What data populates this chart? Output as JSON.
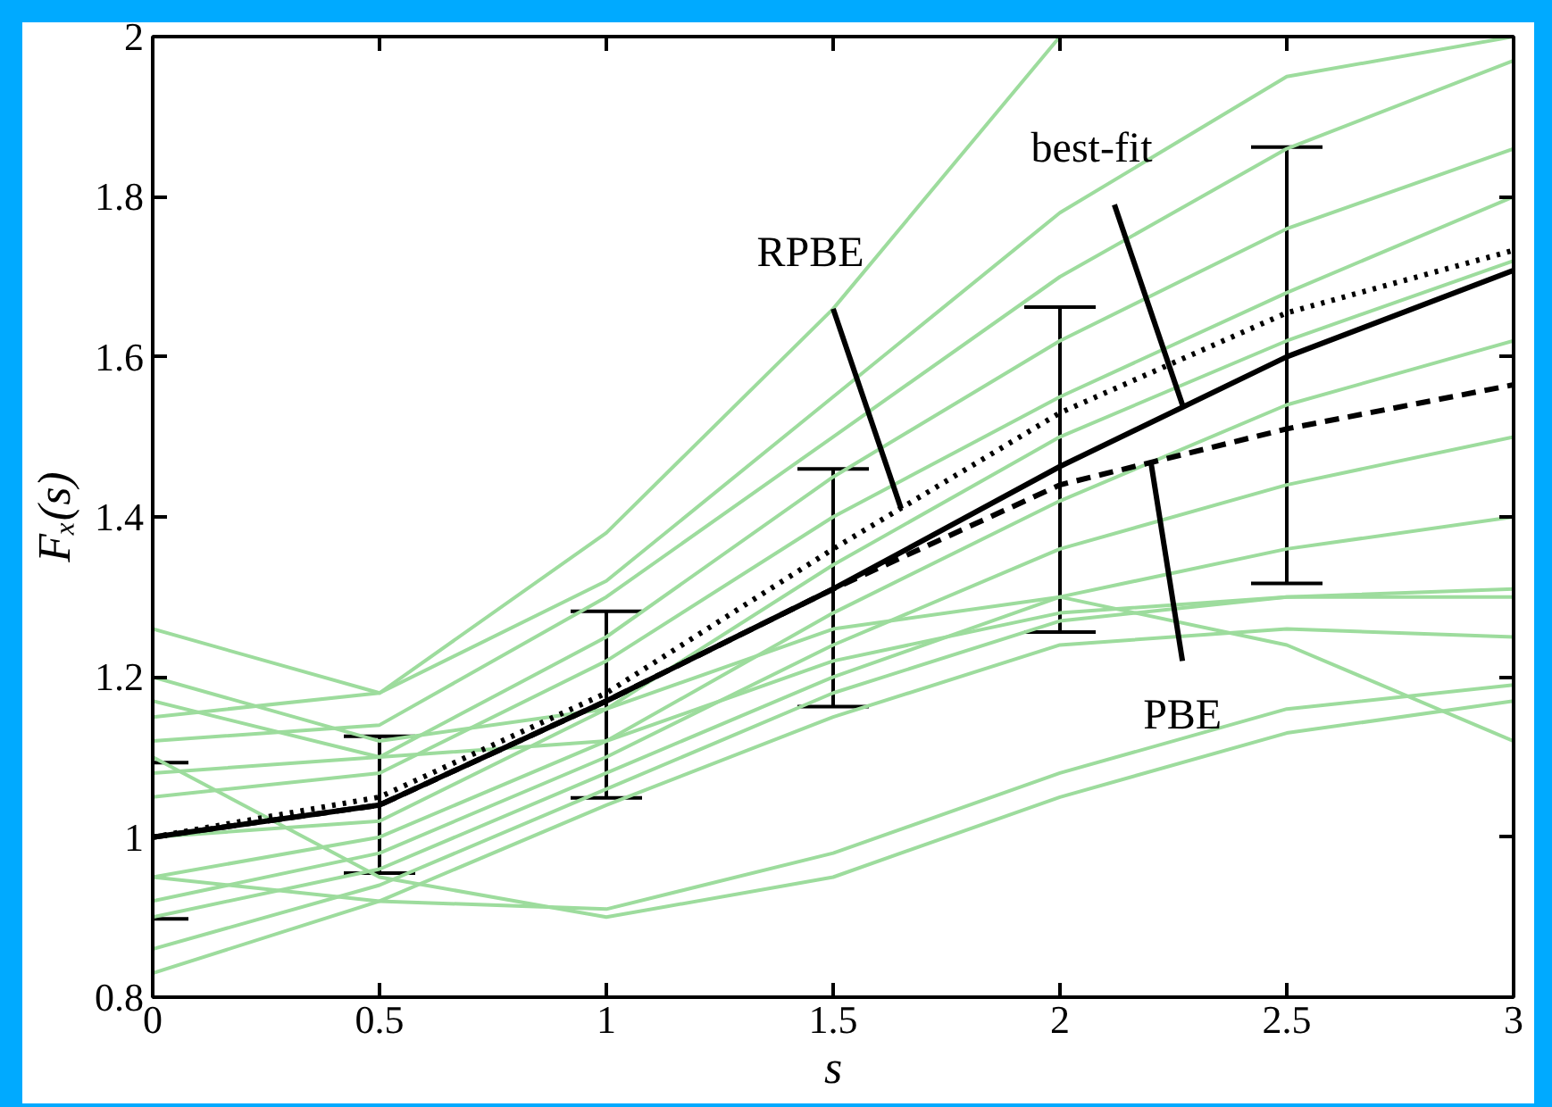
{
  "chart_data": {
    "type": "line",
    "xlabel": "s",
    "ylabel": "Fₓ(s)",
    "xlim": [
      0,
      3
    ],
    "ylim": [
      0.8,
      2
    ],
    "xticks": [
      0,
      0.5,
      1,
      1.5,
      2,
      2.5,
      3
    ],
    "yticks": [
      0.8,
      1,
      1.2,
      1.4,
      1.6,
      1.8,
      2
    ],
    "grid": false,
    "marker": "none",
    "series": [
      {
        "color": "#9ddc9d",
        "x": [
          0,
          0.5,
          1,
          1.5,
          2,
          2.5,
          3
        ],
        "values": [
          1.26,
          1.18,
          1.32,
          1.55,
          1.78,
          1.95,
          2.0
        ]
      },
      {
        "color": "#9ddc9d",
        "x": [
          0,
          0.5,
          1,
          1.5,
          2
        ],
        "values": [
          1.15,
          1.18,
          1.38,
          1.66,
          2.0
        ]
      },
      {
        "color": "#9ddc9d",
        "x": [
          0,
          0.5,
          1,
          1.5,
          2,
          2.5,
          3
        ],
        "values": [
          1.12,
          1.14,
          1.3,
          1.5,
          1.7,
          1.86,
          1.97
        ]
      },
      {
        "color": "#9ddc9d",
        "x": [
          0,
          0.5,
          1,
          1.5,
          2,
          2.5,
          3
        ],
        "values": [
          1.08,
          1.1,
          1.25,
          1.45,
          1.62,
          1.76,
          1.86
        ]
      },
      {
        "color": "#9ddc9d",
        "x": [
          0,
          0.5,
          1,
          1.5,
          2,
          2.5,
          3
        ],
        "values": [
          1.05,
          1.08,
          1.22,
          1.4,
          1.55,
          1.68,
          1.8
        ]
      },
      {
        "color": "#9ddc9d",
        "x": [
          0,
          0.5,
          1,
          1.5,
          2,
          2.5,
          3
        ],
        "values": [
          1.0,
          1.02,
          1.16,
          1.34,
          1.5,
          1.62,
          1.72
        ]
      },
      {
        "color": "#9ddc9d",
        "x": [
          0,
          0.5,
          1,
          1.5,
          2,
          2.5,
          3
        ],
        "values": [
          0.95,
          1.0,
          1.12,
          1.28,
          1.42,
          1.54,
          1.62
        ]
      },
      {
        "color": "#9ddc9d",
        "x": [
          0,
          0.5,
          1,
          1.5,
          2,
          2.5,
          3
        ],
        "values": [
          0.92,
          0.98,
          1.1,
          1.24,
          1.36,
          1.44,
          1.5
        ]
      },
      {
        "color": "#9ddc9d",
        "x": [
          0,
          0.5,
          1,
          1.5,
          2,
          2.5,
          3
        ],
        "values": [
          0.9,
          0.96,
          1.08,
          1.2,
          1.3,
          1.36,
          1.4
        ]
      },
      {
        "color": "#9ddc9d",
        "x": [
          0,
          0.5,
          1,
          1.5,
          2,
          2.5,
          3
        ],
        "values": [
          0.86,
          0.94,
          1.06,
          1.18,
          1.27,
          1.3,
          1.3
        ]
      },
      {
        "color": "#9ddc9d",
        "x": [
          0,
          0.5,
          1,
          1.5,
          2,
          2.5,
          3
        ],
        "values": [
          0.83,
          0.92,
          1.04,
          1.15,
          1.24,
          1.26,
          1.25
        ]
      },
      {
        "color": "#9ddc9d",
        "x": [
          0,
          0.5,
          1,
          1.5,
          2,
          2.5,
          3
        ],
        "values": [
          1.17,
          1.1,
          1.12,
          1.22,
          1.28,
          1.3,
          1.31
        ]
      },
      {
        "color": "#9ddc9d",
        "x": [
          0,
          0.5,
          1,
          1.5,
          2,
          2.5,
          3
        ],
        "values": [
          1.2,
          1.12,
          1.16,
          1.26,
          1.3,
          1.24,
          1.12
        ]
      },
      {
        "color": "#9ddc9d",
        "x": [
          0,
          0.5,
          1,
          1.5,
          2,
          2.5,
          3
        ],
        "values": [
          0.95,
          0.92,
          0.91,
          0.98,
          1.08,
          1.16,
          1.19
        ]
      },
      {
        "color": "#9ddc9d",
        "x": [
          0,
          0.5,
          1,
          1.5,
          2,
          2.5,
          3
        ],
        "values": [
          1.1,
          0.95,
          0.9,
          0.95,
          1.05,
          1.13,
          1.17
        ]
      },
      {
        "color": "#000000",
        "line_style": "dotted",
        "x": [
          0,
          0.5,
          1,
          1.5,
          2,
          2.5,
          3
        ],
        "values": [
          1.0,
          1.05,
          1.18,
          1.36,
          1.53,
          1.655,
          1.733
        ]
      },
      {
        "color": "#000000",
        "line_style": "dashed",
        "x": [
          0,
          0.5,
          1,
          1.5,
          2,
          2.5,
          3
        ],
        "values": [
          1.0,
          1.04,
          1.17,
          1.31,
          1.44,
          1.51,
          1.565
        ]
      },
      {
        "color": "#000000",
        "line_style": "solid",
        "x": [
          0,
          0.5,
          1,
          1.5,
          2,
          2.5,
          3
        ],
        "values": [
          1.0,
          1.04,
          1.17,
          1.31,
          1.463,
          1.6,
          1.708
        ],
        "errors": [
          [
            0.898,
            1.093
          ],
          [
            0.955,
            1.126
          ],
          [
            1.049,
            1.282
          ],
          [
            1.163,
            1.46
          ],
          [
            1.256,
            1.662
          ],
          [
            1.317,
            1.862
          ],
          null
        ]
      }
    ],
    "annotations": [
      {
        "text": "RPBE",
        "x": 1.65,
        "y": 1.41
      },
      {
        "text": "best-fit",
        "x": 2.27,
        "y": 1.54
      },
      {
        "text": "PBE",
        "x": 2.2,
        "y": 1.47
      }
    ]
  }
}
